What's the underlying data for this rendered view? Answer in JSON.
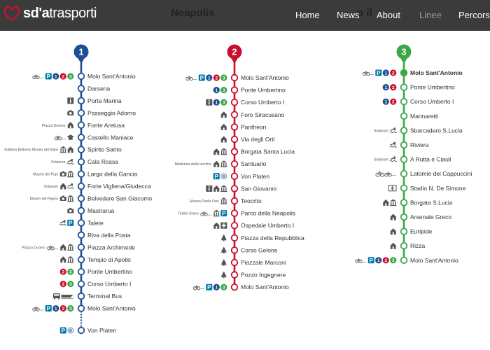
{
  "header": {
    "brand": {
      "prefix": "sd'a",
      "suffix": "trasporti"
    },
    "ghost_titles": [
      "Neapolis",
      "o il"
    ],
    "nav": [
      {
        "label": "Home",
        "state": "normal"
      },
      {
        "label": "News",
        "state": "normal"
      },
      {
        "label": "About",
        "state": "normal"
      },
      {
        "label": "Linee",
        "state": "dim"
      },
      {
        "label": "Percorsi",
        "state": "normal"
      }
    ]
  },
  "colors": {
    "line1": "#1d4f91",
    "line2": "#c8102e",
    "line3": "#3aa845",
    "parking": "#0079a8",
    "icon": "#555555",
    "header_bg": "#3b3b3b"
  },
  "lines": [
    {
      "number": "1",
      "color": "#1d4f91",
      "stops": [
        {
          "name": "Molo Sant'Antonio",
          "icons": [
            "bike-icon",
            "parking-icon",
            "line1-badge",
            "line2-badge",
            "line3-badge"
          ]
        },
        {
          "name": "Darsena",
          "icons": []
        },
        {
          "name": "Porta Marina",
          "icons": [
            "info-icon"
          ]
        },
        {
          "name": "Passeggio Adorno",
          "icons": [
            "camera-icon"
          ]
        },
        {
          "name": "Fonte Aretusa",
          "note": "Piazza Duomo",
          "icons": [
            "church-icon"
          ]
        },
        {
          "name": "Castello Maniace",
          "icons": [
            "bike-icon",
            "academy-icon"
          ]
        },
        {
          "name": "Spirito Santo",
          "note": "Galleria Bellomo Museo del Mare",
          "icons": [
            "museum-icon",
            "church-icon"
          ]
        },
        {
          "name": "Cala Rossa",
          "note": "Solarium",
          "icons": [
            "swim-icon"
          ]
        },
        {
          "name": "Largo della Gancia",
          "note": "Museo dei Pupi",
          "icons": [
            "camera-icon",
            "museum-icon"
          ]
        },
        {
          "name": "Forte Vigliena/Giudecca",
          "note": "Solarium",
          "icons": [
            "church-icon",
            "swim-icon"
          ]
        },
        {
          "name": "Belvedere San Giacomo",
          "note": "Museo del Papiro",
          "icons": [
            "camera-icon",
            "museum-icon"
          ]
        },
        {
          "name": "Mastrarua",
          "icons": [
            "camera-icon"
          ]
        },
        {
          "name": "Talete",
          "icons": [
            "swim-icon",
            "parking-icon"
          ]
        },
        {
          "name": "Riva della Posta",
          "icons": []
        },
        {
          "name": "Piazza Archimede",
          "note": "Piazza Duomo",
          "icons": [
            "bike-icon",
            "church-icon",
            "museum-icon"
          ]
        },
        {
          "name": "Tempio di Apollo",
          "icons": [
            "church-icon",
            "museum-icon"
          ]
        },
        {
          "name": "Ponte Umbertino",
          "icons": [
            "line2-badge",
            "line3-badge"
          ]
        },
        {
          "name": "Corso Umberto I",
          "icons": [
            "line2-badge",
            "line3-badge"
          ]
        },
        {
          "name": "Terminal Bus",
          "icons": [
            "bus-icon",
            "train-icon"
          ]
        },
        {
          "name": "Molo Sant'Antonio",
          "icons": [
            "bike-icon",
            "parking-icon",
            "line1-badge",
            "line2-badge",
            "line3-badge"
          ]
        },
        {
          "name": "Von Platen",
          "icons": [
            "parking-icon",
            "neapolis-icon"
          ],
          "gap": true
        }
      ]
    },
    {
      "number": "2",
      "color": "#c8102e",
      "stops": [
        {
          "name": "Molo Sant'Antonio",
          "icons": [
            "bike-icon",
            "parking-icon",
            "line1-badge",
            "line2-badge",
            "line3-badge"
          ]
        },
        {
          "name": "Ponte Umbertino",
          "icons": [
            "line1-badge",
            "line3-badge"
          ]
        },
        {
          "name": "Corso Umberto I",
          "icons": [
            "info-icon",
            "line1-badge",
            "line3-badge"
          ]
        },
        {
          "name": "Foro Siracusano",
          "icons": [
            "church-icon"
          ]
        },
        {
          "name": "Pantheon",
          "icons": [
            "church-icon"
          ]
        },
        {
          "name": "Via degli Orti",
          "icons": [
            "church-icon"
          ]
        },
        {
          "name": "Borgata Santa Lucia",
          "icons": [
            "church-icon",
            "museum-icon"
          ]
        },
        {
          "name": "Santuario",
          "note": "Madonna delle lacrime",
          "icons": [
            "church-icon",
            "museum-icon"
          ]
        },
        {
          "name": "Von Platen",
          "icons": [
            "parking-icon",
            "neapolis-icon"
          ]
        },
        {
          "name": "San Giovanni",
          "icons": [
            "info-icon",
            "church-icon",
            "museum-icon"
          ]
        },
        {
          "name": "Teocrito",
          "note": "Museo Paolo Orsi",
          "icons": [
            "museum-icon"
          ]
        },
        {
          "name": "Parco della Neapolis",
          "note": "Teatro Greco",
          "icons": [
            "bike-icon",
            "museum-icon",
            "parking-icon"
          ]
        },
        {
          "name": "Ospedale Umberto I",
          "icons": [
            "church-icon",
            "hospital-icon"
          ]
        },
        {
          "name": "Piazza della Repubblica",
          "icons": [
            "tree-icon"
          ]
        },
        {
          "name": "Corso Gelone",
          "icons": [
            "tree-icon"
          ]
        },
        {
          "name": "Piazzale Marconi",
          "icons": [
            "tree-icon"
          ]
        },
        {
          "name": "Pozzo Ingegnere",
          "icons": [
            "tree-icon"
          ]
        },
        {
          "name": "Molo Sant'Antonio",
          "icons": [
            "bike-icon",
            "parking-icon",
            "line1-badge",
            "line3-badge"
          ]
        }
      ]
    },
    {
      "number": "3",
      "color": "#3aa845",
      "stops": [
        {
          "name": "Molo Sant'Antonio",
          "bold": true,
          "icons": [
            "bike-icon",
            "parking-icon",
            "line1-badge",
            "line2-badge"
          ]
        },
        {
          "name": "Ponte Umbertino",
          "icons": [
            "line1-badge",
            "line2-badge"
          ]
        },
        {
          "name": "Corso Umberto I",
          "icons": [
            "line1-badge",
            "line2-badge"
          ]
        },
        {
          "name": "Marinaretti",
          "icons": []
        },
        {
          "name": "Sbarcadero S.Lucia",
          "note": "Solarium",
          "icons": [
            "swim-icon"
          ]
        },
        {
          "name": "Riviera",
          "icons": [
            "swim-icon"
          ]
        },
        {
          "name": "A Rutta e Ciauli",
          "note": "Solarium",
          "icons": [
            "swim-icon"
          ]
        },
        {
          "name": "Latomie dei Cappuccini",
          "icons": [
            "cycle-icon",
            "bike-icon"
          ]
        },
        {
          "name": "Stadio N. De Simone",
          "icons": [
            "stadium-icon"
          ]
        },
        {
          "name": "Borgata S.Lucia",
          "icons": [
            "church-icon",
            "museum-icon"
          ]
        },
        {
          "name": "Arsenale Greco",
          "icons": [
            "church-icon"
          ]
        },
        {
          "name": "Euripide",
          "icons": [
            "church-icon"
          ]
        },
        {
          "name": "Rizza",
          "icons": [
            "church-icon"
          ]
        },
        {
          "name": "Molo Sant'Antonio",
          "icons": [
            "bike-icon",
            "parking-icon",
            "line1-badge",
            "line2-badge",
            "line3-badge"
          ]
        }
      ]
    }
  ]
}
